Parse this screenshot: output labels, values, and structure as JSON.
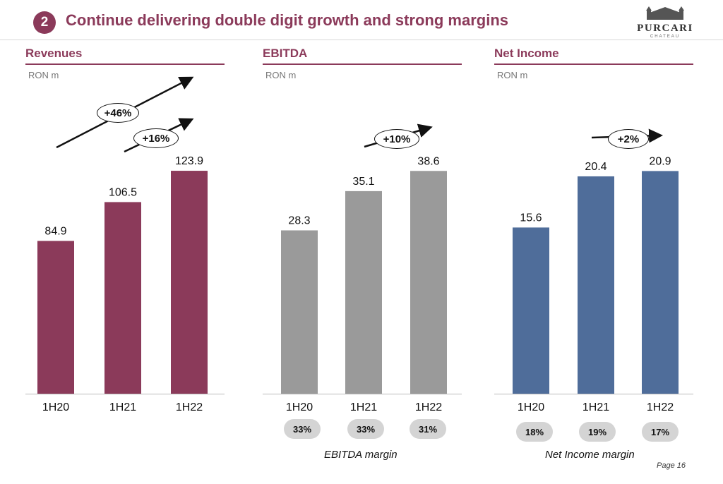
{
  "header": {
    "badge": "2",
    "title": "Continue delivering double digit growth and strong margins",
    "logo_text": "PURCARI",
    "logo_sub": "CHATEAU"
  },
  "page_label": "Page 16",
  "colors": {
    "accent": "#8b3a5a",
    "revenue_bar": "#8b3a5a",
    "ebitda_bar": "#9a9a9a",
    "net_income_bar": "#4f6d9a",
    "pill": "#d4d4d4"
  },
  "chart_data": [
    {
      "type": "bar",
      "title": "Revenues",
      "ylabel": "RON m",
      "categories": [
        "1H20",
        "1H21",
        "1H22"
      ],
      "values": [
        84.9,
        106.5,
        123.9
      ],
      "value_labels": [
        "84.9",
        "106.5",
        "123.9"
      ],
      "growth": [
        {
          "label": "+46%"
        },
        {
          "label": "+16%"
        }
      ],
      "grid": false
    },
    {
      "type": "bar",
      "title": "EBITDA",
      "ylabel": "RON m",
      "categories": [
        "1H20",
        "1H21",
        "1H22"
      ],
      "values": [
        28.3,
        35.1,
        38.6
      ],
      "value_labels": [
        "28.3",
        "35.1",
        "38.6"
      ],
      "growth": [
        {
          "label": "+10%"
        }
      ],
      "margins": [
        "33%",
        "33%",
        "31%"
      ],
      "margin_caption": "EBITDA margin",
      "grid": false
    },
    {
      "type": "bar",
      "title": "Net Income",
      "ylabel": "RON m",
      "categories": [
        "1H20",
        "1H21",
        "1H22"
      ],
      "values": [
        15.6,
        20.4,
        20.9
      ],
      "value_labels": [
        "15.6",
        "20.4",
        "20.9"
      ],
      "growth": [
        {
          "label": "+2%"
        }
      ],
      "margins": [
        "18%",
        "19%",
        "17%"
      ],
      "margin_caption": "Net Income margin",
      "grid": false
    }
  ]
}
